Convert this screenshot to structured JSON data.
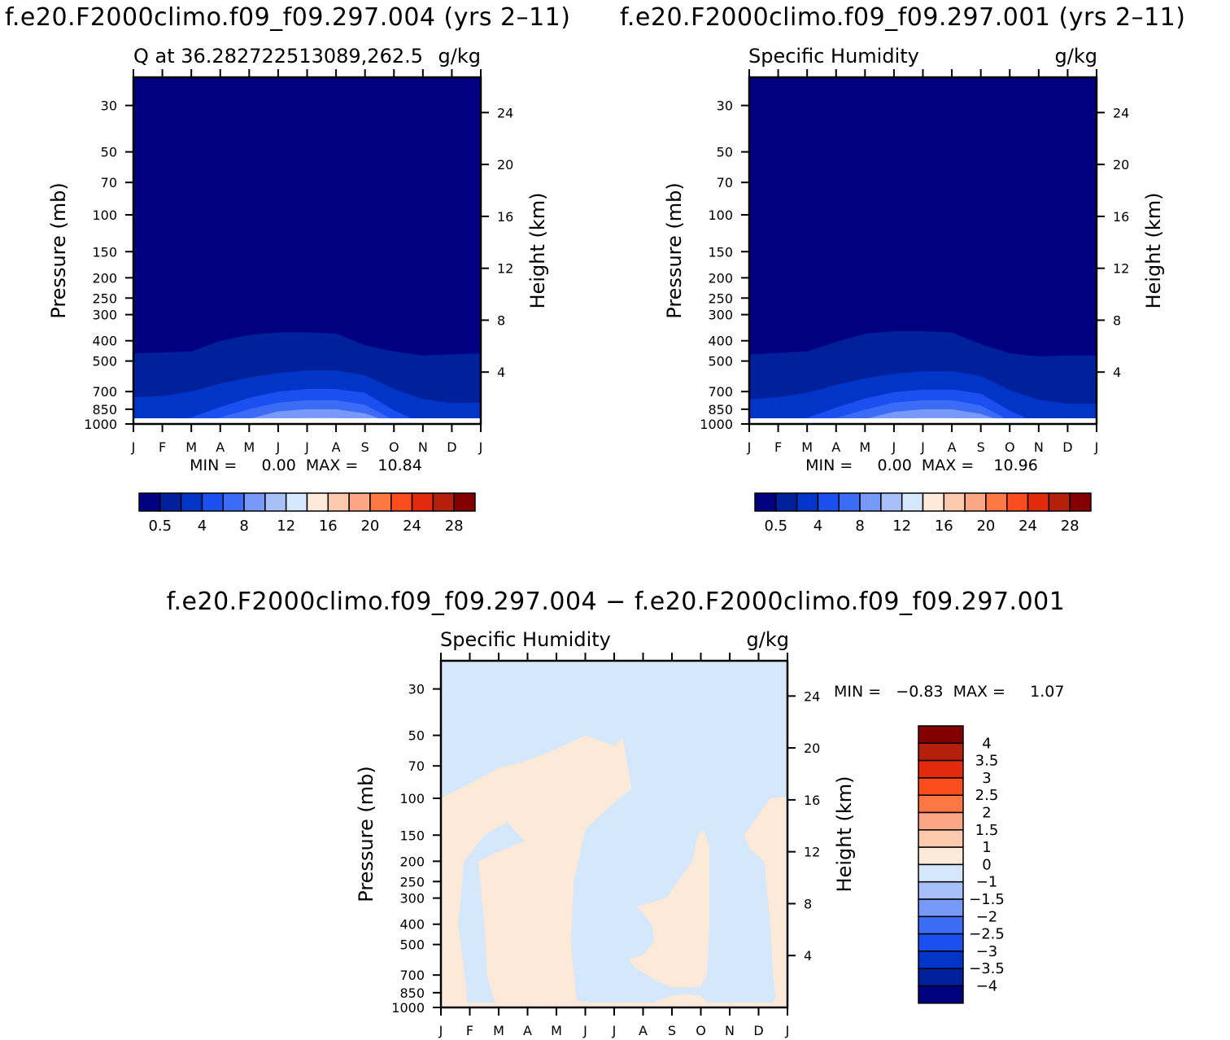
{
  "colors": {
    "q_levels": [
      "#000080",
      "#00209c",
      "#0035c8",
      "#1c4ff0",
      "#3c6bf6",
      "#7799f7",
      "#a7c0f7",
      "#d4e7fb",
      "#fde9d8",
      "#fcc9af",
      "#fba685",
      "#fb7844",
      "#fa4c1c",
      "#e32a0d",
      "#b5200c",
      "#830000"
    ],
    "d_levels": [
      "#000080",
      "#00209c",
      "#0035c8",
      "#1c4ff0",
      "#3c6bf6",
      "#7799f7",
      "#a7c0f7",
      "#d4e7fb",
      "#fde9d8",
      "#fcc9af",
      "#fba685",
      "#fb7844",
      "#fa4c1c",
      "#e32a0d",
      "#b5200c",
      "#830000"
    ]
  },
  "chart_data": [
    {
      "type": "contour",
      "title": "f.e20.F2000climo.f09_f09.297.004 (yrs 2–11)",
      "subtitle_left": "Q at 36.282722513089,262.5",
      "subtitle_right": "g/kg",
      "xlabel": "",
      "ylabel": "Pressure (mb)",
      "ylabel_right": "Height (km)",
      "x_ticks": [
        "J",
        "F",
        "M",
        "A",
        "M",
        "J",
        "J",
        "A",
        "S",
        "O",
        "N",
        "D",
        "J"
      ],
      "y_ticks": [
        "30",
        "50",
        "70",
        "100",
        "150",
        "200",
        "250",
        "300",
        "400",
        "500",
        "700",
        "850",
        "1000"
      ],
      "y_ticks_right": [
        "24",
        "20",
        "16",
        "12",
        "8",
        "4"
      ],
      "ylim_mb": [
        20,
        1000
      ],
      "stats": "MIN =     0.00  MAX =    10.84",
      "colorbar_labels": [
        "0.5",
        "4",
        "8",
        "12",
        "16",
        "20",
        "24",
        "28"
      ],
      "contour_top_mb": [
        {
          "level": "0.5",
          "values": [
            460,
            455,
            450,
            400,
            375,
            365,
            365,
            370,
            420,
            450,
            470,
            465,
            460
          ]
        },
        {
          "level": "2",
          "values": [
            745,
            735,
            700,
            640,
            600,
            570,
            555,
            555,
            585,
            680,
            760,
            795,
            790
          ]
        },
        {
          "level": "4",
          "values": [
            1000,
            1000,
            930,
            830,
            750,
            700,
            680,
            680,
            710,
            860,
            1000,
            1000,
            1000
          ]
        },
        {
          "level": "6",
          "values": [
            1000,
            1000,
            1000,
            930,
            850,
            790,
            770,
            770,
            810,
            960,
            1000,
            1000,
            1000
          ]
        },
        {
          "level": "8",
          "values": [
            1000,
            1000,
            1000,
            1000,
            945,
            870,
            850,
            850,
            890,
            1000,
            1000,
            1000,
            1000
          ]
        },
        {
          "level": "10",
          "values": [
            1000,
            1000,
            1000,
            1000,
            1000,
            945,
            935,
            935,
            990,
            1000,
            1000,
            1000,
            1000
          ]
        }
      ],
      "max": 10.84,
      "min": 0.0
    },
    {
      "type": "contour",
      "title": "f.e20.F2000climo.f09_f09.297.001 (yrs 2–11)",
      "subtitle_left": "Specific Humidity",
      "subtitle_right": "g/kg",
      "ylabel": "Pressure (mb)",
      "ylabel_right": "Height (km)",
      "x_ticks": [
        "J",
        "F",
        "M",
        "A",
        "M",
        "J",
        "J",
        "A",
        "S",
        "O",
        "N",
        "D",
        "J"
      ],
      "y_ticks": [
        "30",
        "50",
        "70",
        "100",
        "150",
        "200",
        "250",
        "300",
        "400",
        "500",
        "700",
        "850",
        "1000"
      ],
      "y_ticks_right": [
        "24",
        "20",
        "16",
        "12",
        "8",
        "4"
      ],
      "ylim_mb": [
        20,
        1000
      ],
      "stats": "MIN =     0.00  MAX =    10.96",
      "colorbar_labels": [
        "0.5",
        "4",
        "8",
        "12",
        "16",
        "20",
        "24",
        "28"
      ],
      "contour_top_mb": [
        {
          "level": "0.5",
          "values": [
            465,
            458,
            450,
            405,
            370,
            360,
            360,
            365,
            415,
            460,
            475,
            470,
            470
          ]
        },
        {
          "level": "2",
          "values": [
            760,
            745,
            710,
            650,
            605,
            575,
            560,
            560,
            590,
            690,
            765,
            800,
            800
          ]
        },
        {
          "level": "4",
          "values": [
            1000,
            1000,
            935,
            835,
            755,
            705,
            685,
            685,
            715,
            865,
            1000,
            1000,
            1000
          ]
        },
        {
          "level": "6",
          "values": [
            1000,
            1000,
            1000,
            935,
            855,
            790,
            770,
            770,
            815,
            965,
            1000,
            1000,
            1000
          ]
        },
        {
          "level": "8",
          "values": [
            1000,
            1000,
            1000,
            1000,
            945,
            875,
            850,
            850,
            895,
            1000,
            1000,
            1000,
            1000
          ]
        },
        {
          "level": "10",
          "values": [
            1000,
            1000,
            1000,
            1000,
            1000,
            950,
            935,
            935,
            995,
            1000,
            1000,
            1000,
            1000
          ]
        }
      ],
      "max": 10.96,
      "min": 0.0
    },
    {
      "type": "contour",
      "title": "f.e20.F2000climo.f09_f09.297.004 − f.e20.F2000climo.f09_f09.297.001",
      "subtitle_left": "Specific Humidity",
      "subtitle_right": "g/kg",
      "ylabel": "Pressure (mb)",
      "ylabel_right": "Height (km)",
      "x_ticks": [
        "J",
        "F",
        "M",
        "A",
        "M",
        "J",
        "J",
        "A",
        "S",
        "O",
        "N",
        "D",
        "J"
      ],
      "y_ticks": [
        "30",
        "50",
        "70",
        "100",
        "150",
        "200",
        "250",
        "300",
        "400",
        "500",
        "700",
        "850",
        "1000"
      ],
      "y_ticks_right": [
        "24",
        "20",
        "16",
        "12",
        "8",
        "4"
      ],
      "ylim_mb": [
        20,
        1000
      ],
      "stats": "MIN =   −0.83  MAX =     1.07",
      "colorbar_labels": [
        "4",
        "3.5",
        "3",
        "2.5",
        "2",
        "1.5",
        "1",
        "0",
        "−1",
        "−1.5",
        "−2",
        "−2.5",
        "−3",
        "−3.5",
        "−4"
      ],
      "positive_regions_mb": [
        {
          "name": "left-lobe",
          "points": [
            [
              0,
              100
            ],
            [
              1,
              85
            ],
            [
              2,
              72
            ],
            [
              3,
              66
            ],
            [
              4,
              58
            ],
            [
              5,
              50
            ],
            [
              6,
              56
            ],
            [
              6.3,
              52
            ],
            [
              6.6,
              90
            ],
            [
              6,
              105
            ],
            [
              5,
              140
            ],
            [
              4.6,
              250
            ],
            [
              4.5,
              500
            ],
            [
              4.7,
              930
            ],
            [
              5.5,
              960
            ],
            [
              6.5,
              990
            ],
            [
              7,
              1000
            ],
            [
              0.6,
              1000
            ],
            [
              2,
              1000
            ],
            [
              1.8,
              900
            ],
            [
              1.6,
              700
            ],
            [
              1.5,
              400
            ],
            [
              1.3,
              200
            ],
            [
              2,
              180
            ],
            [
              2.9,
              160
            ],
            [
              2.3,
              130
            ],
            [
              1.5,
              150
            ],
            [
              0.8,
              200
            ],
            [
              0.6,
              400
            ],
            [
              0.9,
              850
            ],
            [
              0.9,
              1000
            ],
            [
              0,
              1000
            ]
          ]
        },
        {
          "name": "mid-lobe",
          "points": [
            [
              6.8,
              330
            ],
            [
              7.8,
              300
            ],
            [
              8.7,
              200
            ],
            [
              8.9,
              150
            ],
            [
              9.1,
              140
            ],
            [
              9.3,
              170
            ],
            [
              9.3,
              400
            ],
            [
              9.2,
              700
            ],
            [
              9.0,
              790
            ],
            [
              8.7,
              800
            ],
            [
              8.0,
              800
            ],
            [
              7.5,
              750
            ],
            [
              6.7,
              640
            ],
            [
              6.5,
              590
            ],
            [
              7.0,
              560
            ],
            [
              7.4,
              480
            ],
            [
              7.3,
              400
            ]
          ]
        },
        {
          "name": "right-lobe",
          "points": [
            [
              10.5,
              150
            ],
            [
              11.0,
              120
            ],
            [
              11.4,
              100
            ],
            [
              12,
              98
            ],
            [
              12,
              1000
            ],
            [
              11.3,
              1000
            ],
            [
              11.6,
              900
            ],
            [
              11.5,
              700
            ],
            [
              11.4,
              400
            ],
            [
              11.2,
              200
            ],
            [
              10.7,
              175
            ]
          ]
        },
        {
          "name": "bottom-lobe",
          "points": [
            [
              7.3,
              1000
            ],
            [
              7.5,
              930
            ],
            [
              8.0,
              880
            ],
            [
              8.5,
              860
            ],
            [
              9.0,
              880
            ],
            [
              9.2,
              940
            ],
            [
              9.4,
              1000
            ]
          ]
        }
      ]
    }
  ],
  "panels": {
    "top_left": {
      "title": "f.e20.F2000climo.f09_f09.297.004 (yrs 2–11)",
      "sub_left": "Q at 36.282722513089,262.5",
      "sub_right": "g/kg",
      "stats": "MIN =     0.00  MAX =    10.84"
    },
    "top_right": {
      "title": "f.e20.F2000climo.f09_f09.297.001 (yrs 2–11)",
      "sub_left": "Specific Humidity",
      "sub_right": "g/kg",
      "stats": "MIN =     0.00  MAX =    10.96"
    },
    "bottom": {
      "title": "f.e20.F2000climo.f09_f09.297.004 − f.e20.F2000climo.f09_f09.297.001",
      "sub_left": "Specific Humidity",
      "sub_right": "g/kg",
      "stats": "MIN =   −0.83  MAX =     1.07"
    }
  }
}
